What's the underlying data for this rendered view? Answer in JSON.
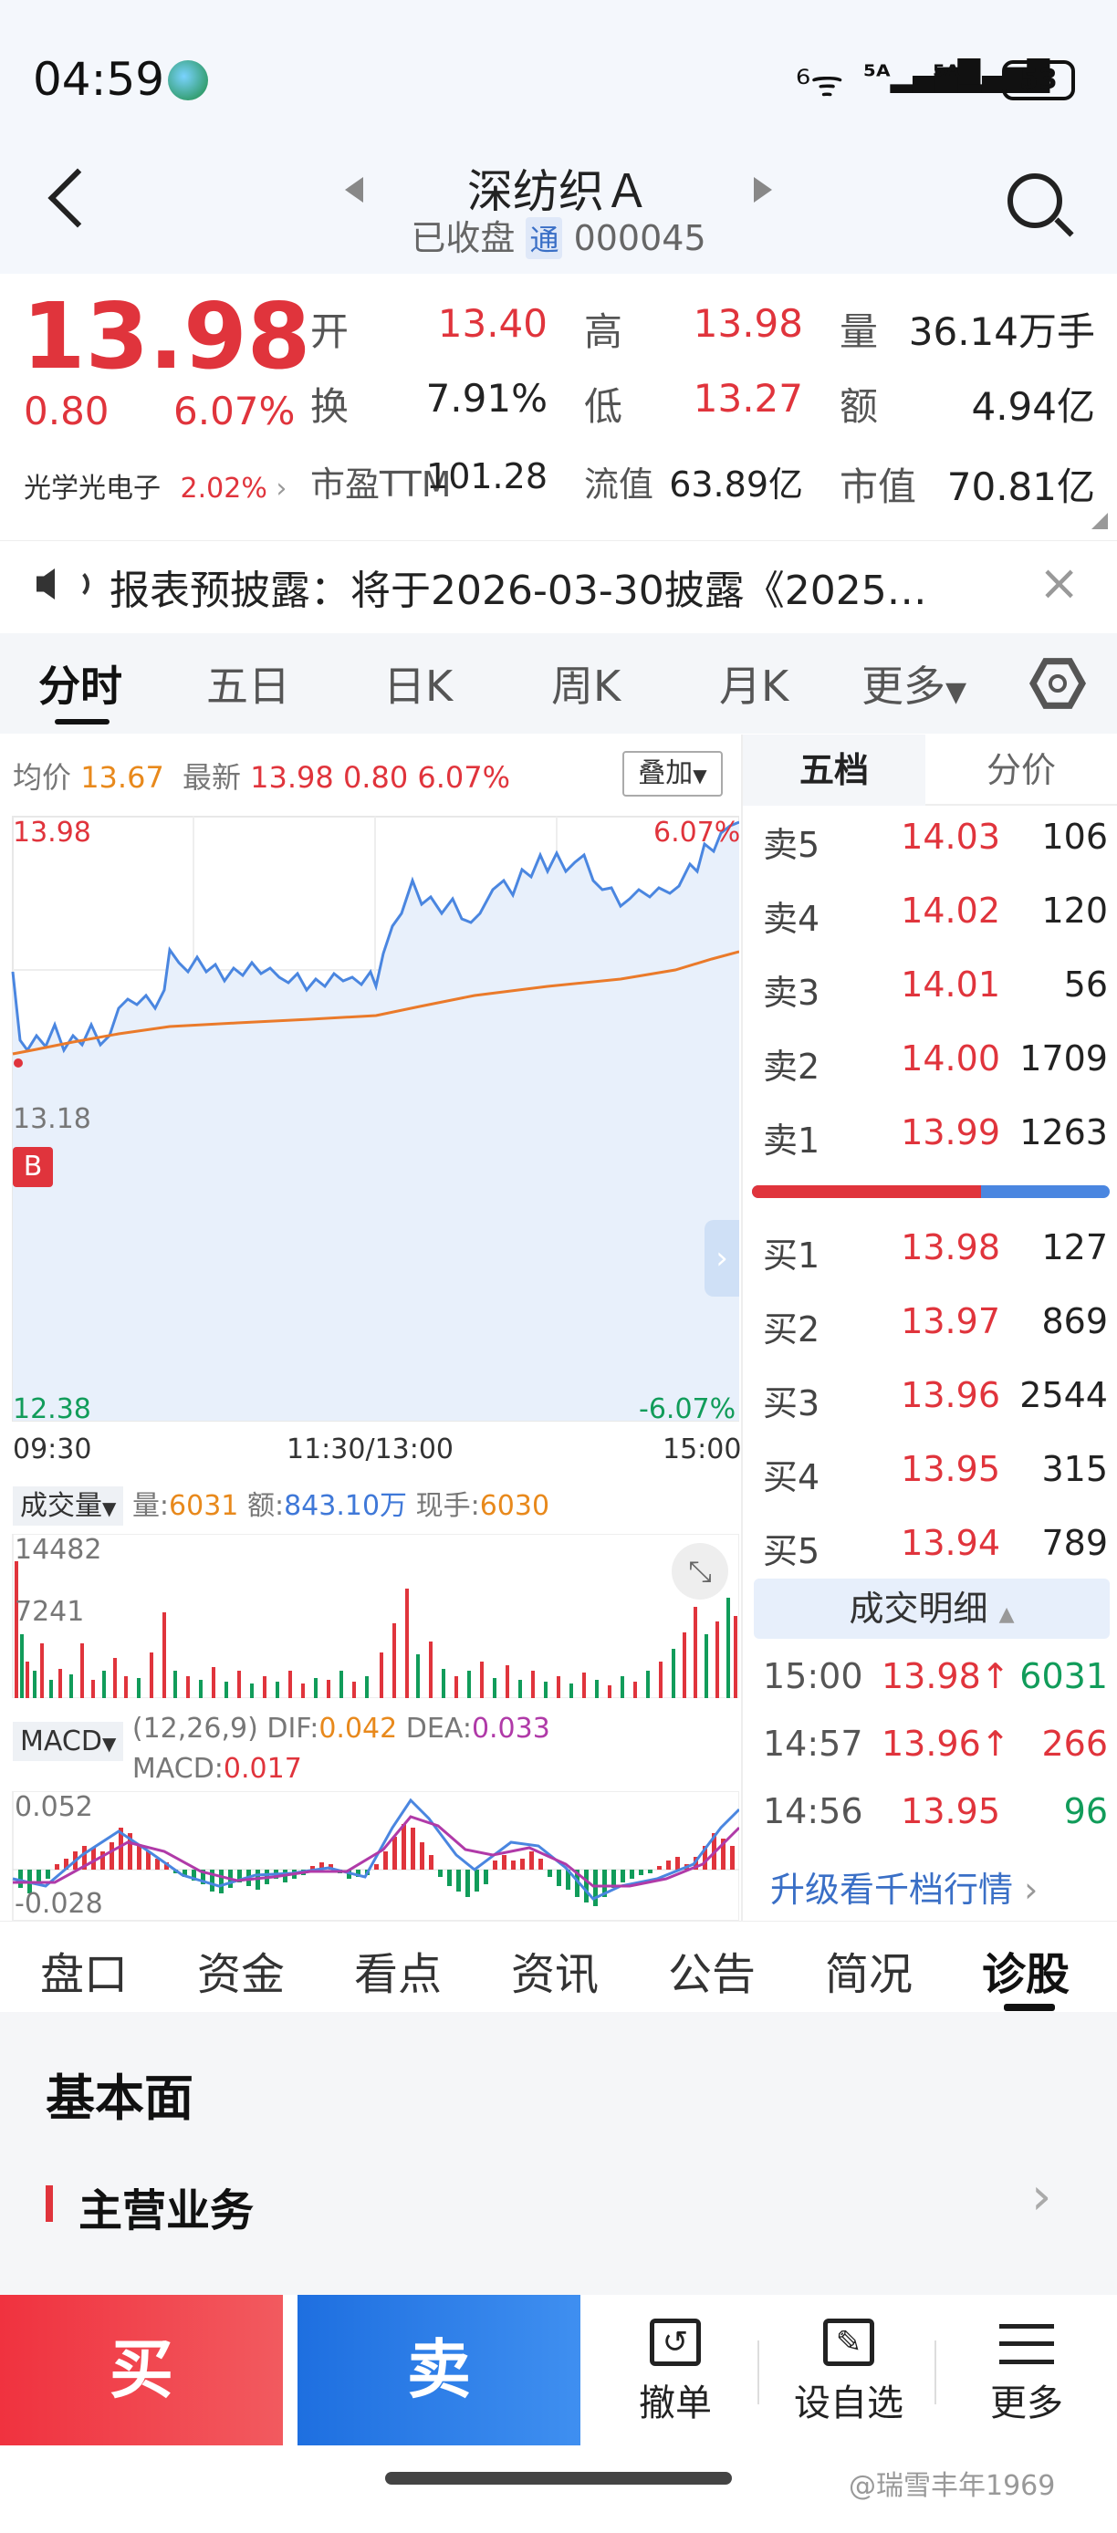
{
  "status": {
    "time": "04:59",
    "battery": "53"
  },
  "header": {
    "title": "深纺织Ａ",
    "state": "已收盘",
    "tong_badge": "通",
    "code": "000045"
  },
  "quote": {
    "price": "13.98",
    "change": "0.80",
    "change_pct": "6.07%",
    "related": {
      "name": "光学光电子",
      "pct": "2.02%"
    },
    "fields": [
      {
        "label": "开",
        "value": "13.40",
        "color": "red"
      },
      {
        "label": "高",
        "value": "13.98",
        "color": "red"
      },
      {
        "label": "量",
        "value": "36.14万手",
        "color": "black"
      },
      {
        "label": "换",
        "value": "7.91%",
        "color": "black"
      },
      {
        "label": "低",
        "value": "13.27",
        "color": "red"
      },
      {
        "label": "额",
        "value": "4.94亿",
        "color": "black"
      },
      {
        "label": "市盈TTM",
        "value": "101.28",
        "color": "black"
      },
      {
        "label": "流值",
        "value": "63.89亿",
        "color": "black"
      },
      {
        "label": "市值",
        "value": "70.81亿",
        "color": "black"
      }
    ]
  },
  "notice": {
    "text": "报表预披露：将于2026-03-30披露《2025…"
  },
  "tabs": [
    "分时",
    "五日",
    "日K",
    "周K",
    "月K",
    "更多"
  ],
  "intraday": {
    "avg_label": "均价",
    "avg_value": "13.67",
    "last_label": "最新",
    "last_value": "13.98",
    "last_change": "0.80",
    "last_pct": "6.07%",
    "overlay_label": "叠加",
    "y_top": "13.98",
    "y_mid": "13.18",
    "y_bottom": "12.38",
    "pct_top": "6.07%",
    "pct_bottom": "-6.07%",
    "b_marker": "B",
    "time_labels": [
      "09:30",
      "11:30/13:00",
      "15:00"
    ]
  },
  "volume": {
    "selector": "成交量",
    "vol_label": "量:",
    "vol_value": "6031",
    "amt_label": "额:",
    "amt_value": "843.10万",
    "hand_label": "现手:",
    "hand_value": "6030",
    "y_top": "14482",
    "y_mid": "7241"
  },
  "macd": {
    "selector": "MACD",
    "params": "(12,26,9)",
    "dif_label": "DIF:",
    "dif_value": "0.042",
    "dea_label": "DEA:",
    "dea_value": "0.033",
    "macd_label": "MACD:",
    "macd_value": "0.017",
    "y_top": "0.052",
    "y_bottom": "-0.028"
  },
  "order_book": {
    "tab_active": "五档",
    "tab_other": "分价",
    "asks": [
      {
        "label": "卖5",
        "price": "14.03",
        "vol": "106"
      },
      {
        "label": "卖4",
        "price": "14.02",
        "vol": "120"
      },
      {
        "label": "卖3",
        "price": "14.01",
        "vol": "56"
      },
      {
        "label": "卖2",
        "price": "14.00",
        "vol": "1709"
      },
      {
        "label": "卖1",
        "price": "13.99",
        "vol": "1263"
      }
    ],
    "bids": [
      {
        "label": "买1",
        "price": "13.98",
        "vol": "127"
      },
      {
        "label": "买2",
        "price": "13.97",
        "vol": "869"
      },
      {
        "label": "买3",
        "price": "13.96",
        "vol": "2544"
      },
      {
        "label": "买4",
        "price": "13.95",
        "vol": "315"
      },
      {
        "label": "买5",
        "price": "13.94",
        "vol": "789"
      }
    ],
    "ratio_red": 0.64
  },
  "trades": {
    "title": "成交明细",
    "rows": [
      {
        "time": "15:00",
        "price": "13.98",
        "arrow": "↑",
        "vol": "6031",
        "color": "green"
      },
      {
        "time": "14:57",
        "price": "13.96",
        "arrow": "↑",
        "vol": "266",
        "color": "red"
      },
      {
        "time": "14:56",
        "price": "13.95",
        "arrow": "",
        "vol": "96",
        "color": "green"
      }
    ],
    "upgrade": "升级看千档行情"
  },
  "bottom_tabs": [
    "盘口",
    "资金",
    "看点",
    "资讯",
    "公告",
    "简况",
    "诊股"
  ],
  "section": {
    "title": "基本面",
    "item": "主营业务"
  },
  "actions": {
    "buy": "买",
    "sell": "卖",
    "cancel": "撤单",
    "watch": "设自选",
    "more": "更多"
  },
  "watermark": "@瑞雪丰年1969",
  "colors": {
    "up": "#e0343c",
    "down": "#119c5a",
    "price_line": "#4a86e0",
    "avg_line": "#ea7a2a",
    "buy_btn": "#f23c46",
    "sell_btn": "#2f7fe0"
  }
}
